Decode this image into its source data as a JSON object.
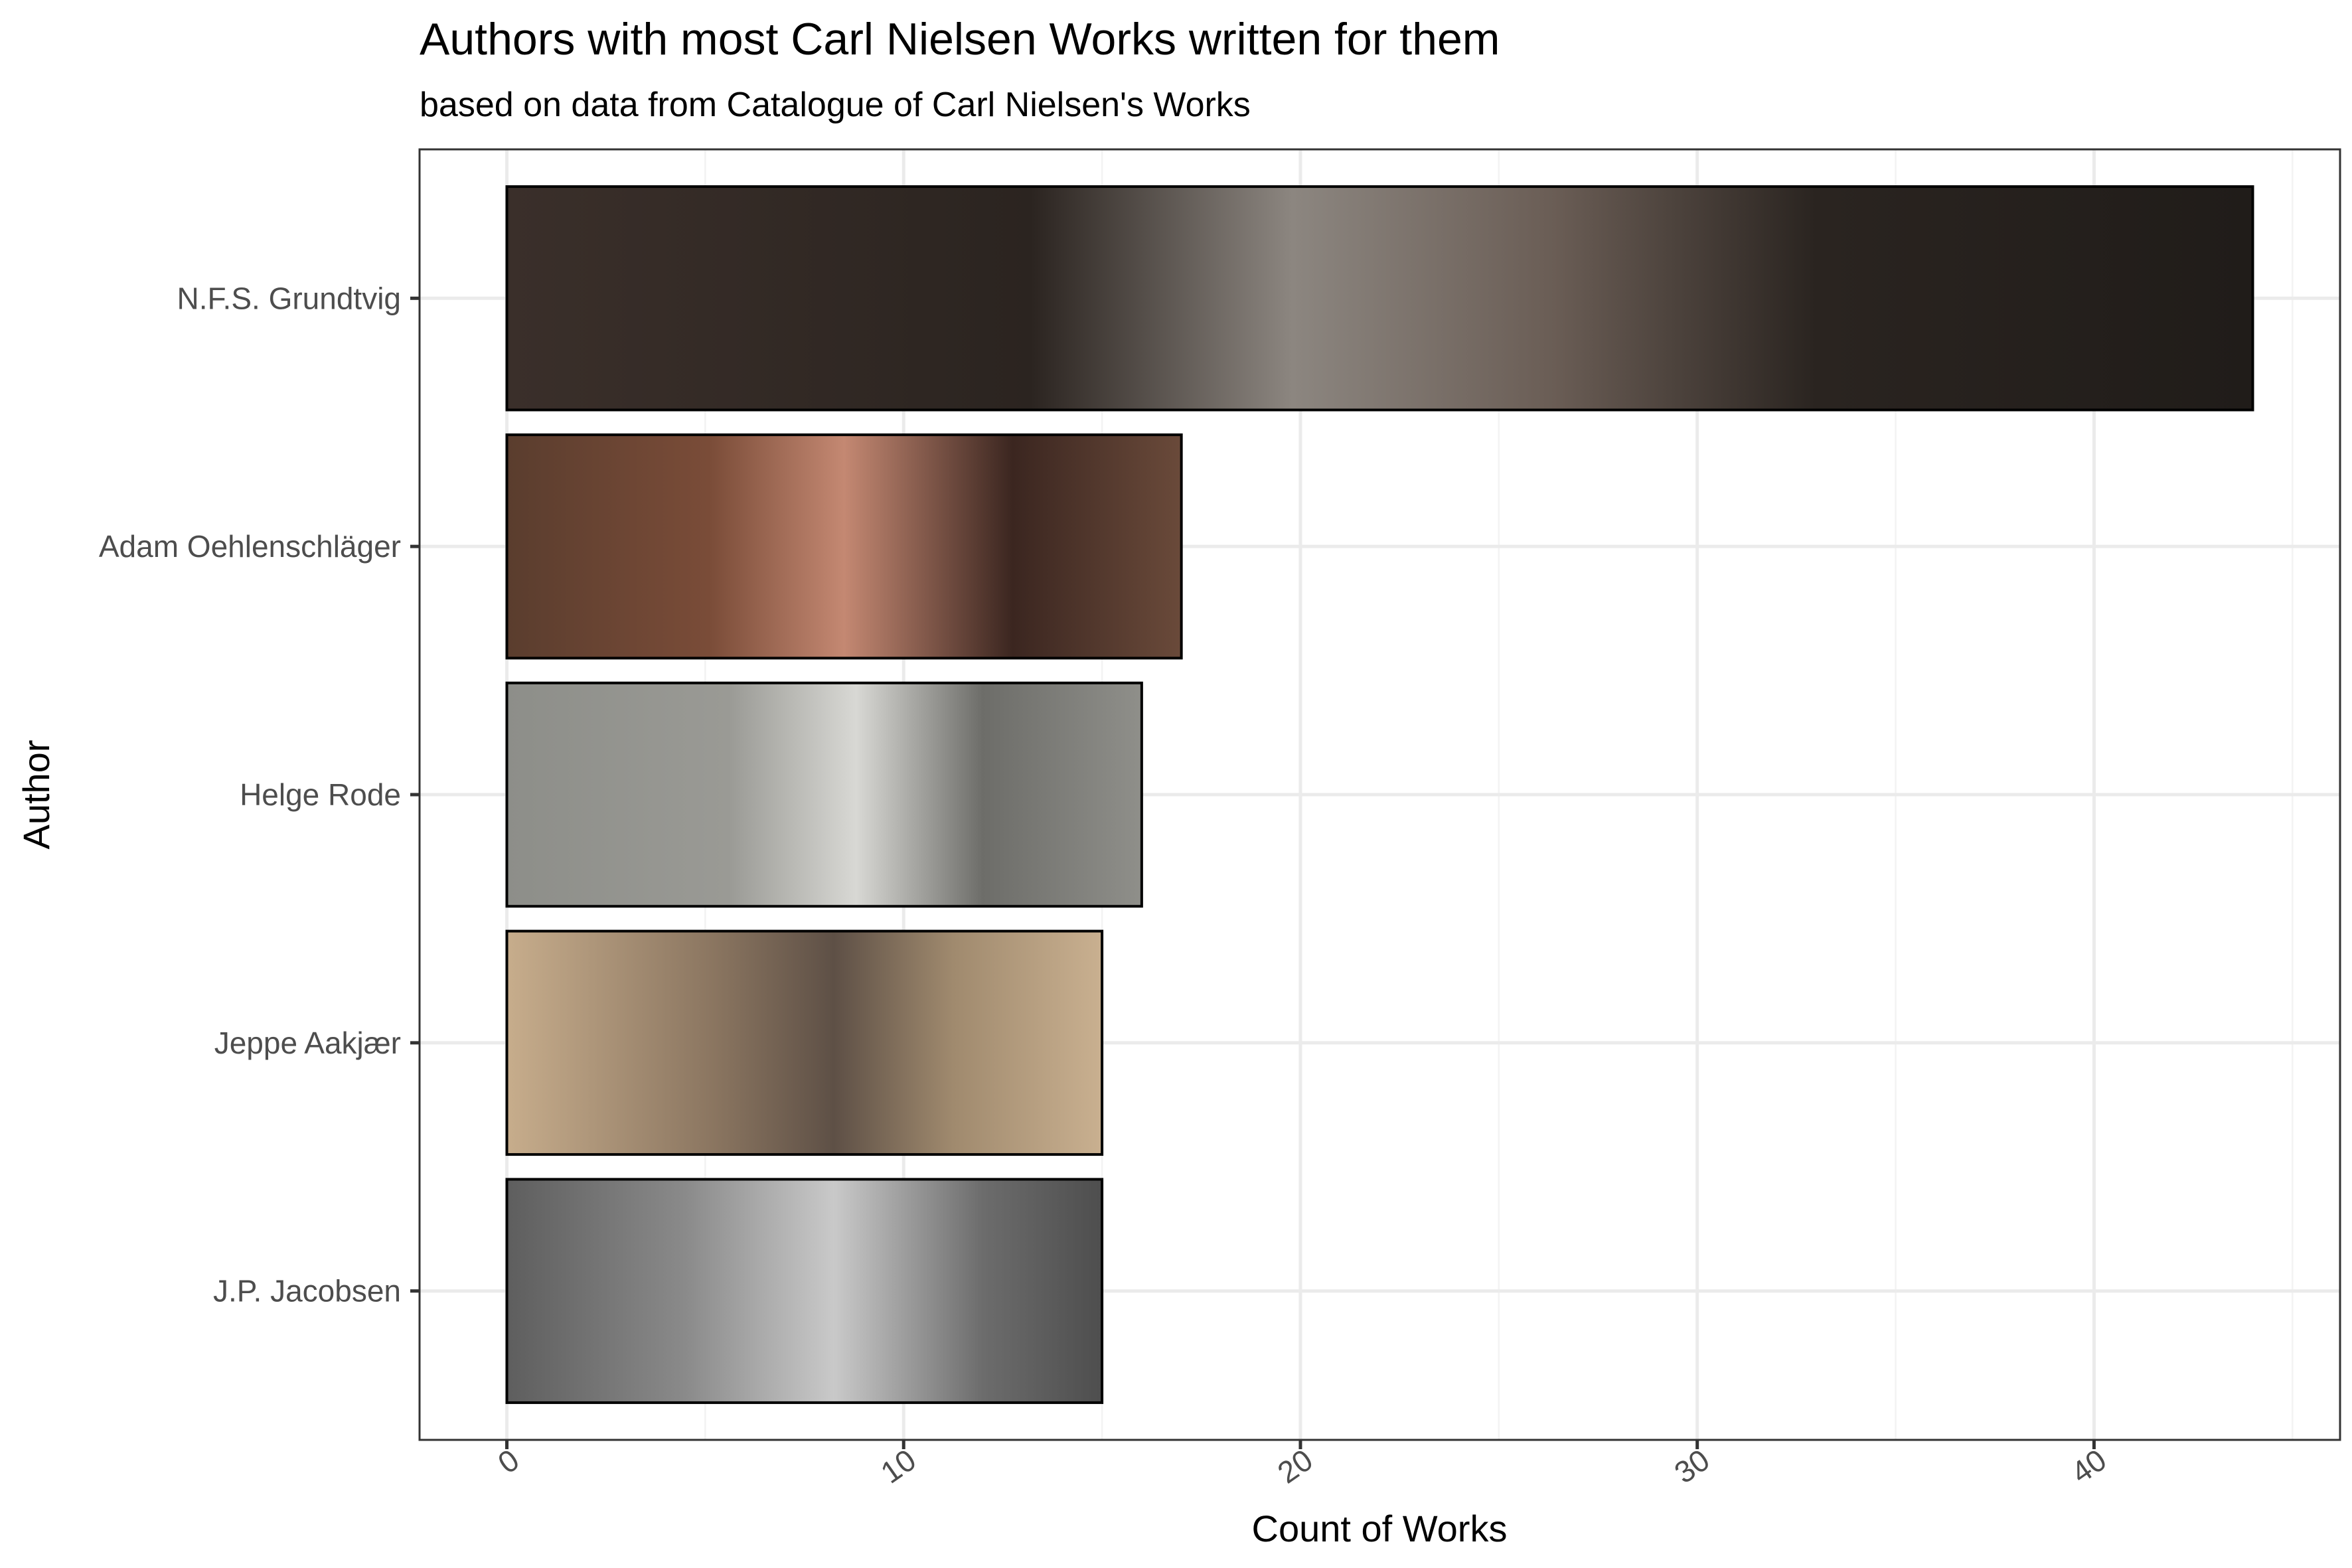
{
  "chart_data": {
    "type": "bar",
    "orientation": "horizontal",
    "title": "Authors with most Carl Nielsen Works written for them",
    "subtitle": "based on data from Catalogue of Carl Nielsen's Works",
    "xlabel": "Count of Works",
    "ylabel": "Author",
    "xlim": [
      -2.2,
      46.2
    ],
    "x_ticks": [
      "0",
      "10",
      "20",
      "30",
      "40"
    ],
    "x_tick_values": [
      0,
      10,
      20,
      30,
      40
    ],
    "grid": true,
    "categories": [
      "N.F.S. Grundtvig",
      "Adam Oehlenschläger",
      "Helge Rode",
      "Jeppe Aakjær",
      "J.P. Jacobsen"
    ],
    "values": [
      44,
      17,
      16,
      15,
      15
    ],
    "bar_fills": [
      "#2e2824",
      "#6e4a3a",
      "#8f8f8a",
      "#b39a7c",
      "#7a7a7a"
    ],
    "bar_fill_description": "portrait photographs of each author"
  }
}
